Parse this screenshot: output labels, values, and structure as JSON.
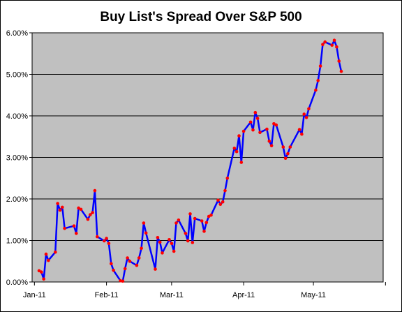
{
  "chart_data": {
    "type": "line",
    "title": "Buy List's Spread Over S&P 500",
    "xlabel": "",
    "ylabel": "",
    "x_tick_labels": [
      "Jan-11",
      "Feb-11",
      "Mar-11",
      "Apr-11",
      "May-11"
    ],
    "y_tick_labels": [
      "0.00%",
      "1.00%",
      "2.00%",
      "3.00%",
      "4.00%",
      "5.00%",
      "6.00%"
    ],
    "xlim": [
      "2010-12-31",
      "2011-05-31"
    ],
    "ylim": [
      0,
      6
    ],
    "grid": "horizontal",
    "legend": "none",
    "series": [
      {
        "x": [
          "2011-01-03",
          "2011-01-04",
          "2011-01-05",
          "2011-01-06",
          "2011-01-07",
          "2011-01-10",
          "2011-01-11",
          "2011-01-12",
          "2011-01-13",
          "2011-01-14",
          "2011-01-18",
          "2011-01-19",
          "2011-01-20",
          "2011-01-21",
          "2011-01-24",
          "2011-01-25",
          "2011-01-26",
          "2011-01-27",
          "2011-01-28",
          "2011-01-31",
          "2011-02-01",
          "2011-02-02",
          "2011-02-03",
          "2011-02-04",
          "2011-02-07",
          "2011-02-08",
          "2011-02-09",
          "2011-02-10",
          "2011-02-11",
          "2011-02-14",
          "2011-02-15",
          "2011-02-16",
          "2011-02-17",
          "2011-02-18",
          "2011-02-22",
          "2011-02-23",
          "2011-02-24",
          "2011-02-25",
          "2011-02-28",
          "2011-03-01",
          "2011-03-02",
          "2011-03-03",
          "2011-03-04",
          "2011-03-07",
          "2011-03-08",
          "2011-03-09",
          "2011-03-10",
          "2011-03-11",
          "2011-03-14",
          "2011-03-15",
          "2011-03-16",
          "2011-03-17",
          "2011-03-18",
          "2011-03-21",
          "2011-03-22",
          "2011-03-23",
          "2011-03-24",
          "2011-03-25",
          "2011-03-28",
          "2011-03-29",
          "2011-03-30",
          "2011-03-31",
          "2011-04-01",
          "2011-04-04",
          "2011-04-05",
          "2011-04-06",
          "2011-04-07",
          "2011-04-08",
          "2011-04-11",
          "2011-04-12",
          "2011-04-13",
          "2011-04-14",
          "2011-04-15",
          "2011-04-18",
          "2011-04-19",
          "2011-04-20",
          "2011-04-21",
          "2011-04-25",
          "2011-04-26",
          "2011-04-27",
          "2011-04-28",
          "2011-04-29",
          "2011-05-02",
          "2011-05-03",
          "2011-05-04",
          "2011-05-05",
          "2011-05-06",
          "2011-05-09",
          "2011-05-10",
          "2011-05-11",
          "2011-05-12",
          "2011-05-13",
          "2011-05-16",
          "2011-05-17",
          "2011-05-18",
          "2011-05-19",
          "2011-05-20"
        ],
        "y": [
          0.27,
          0.24,
          0.07,
          0.67,
          0.52,
          0.72,
          1.89,
          1.73,
          1.8,
          1.29,
          1.35,
          1.17,
          1.78,
          1.75,
          1.51,
          1.62,
          1.67,
          2.2,
          1.09,
          0.99,
          1.05,
          0.93,
          0.44,
          0.28,
          0.03,
          0.02,
          0.32,
          0.58,
          0.5,
          0.4,
          0.58,
          0.81,
          1.42,
          1.18,
          0.31,
          1.07,
          0.96,
          0.7,
          1.02,
          0.93,
          0.74,
          1.42,
          1.49,
          1.17,
          0.99,
          1.64,
          0.95,
          1.53,
          1.47,
          1.22,
          1.43,
          1.58,
          1.61,
          1.97,
          1.87,
          1.93,
          2.2,
          2.5,
          3.22,
          3.14,
          3.52,
          2.88,
          3.63,
          3.85,
          3.66,
          4.08,
          3.94,
          3.6,
          3.68,
          3.39,
          3.28,
          3.81,
          3.78,
          3.25,
          2.98,
          3.09,
          3.25,
          3.67,
          3.56,
          4.04,
          3.96,
          4.17,
          4.62,
          4.85,
          5.2,
          5.72,
          5.78,
          5.7,
          5.82,
          5.66,
          5.32,
          5.07,
          null,
          null,
          null,
          null,
          null
        ]
      }
    ],
    "colors": {
      "plot_background": "#c0c0c0",
      "line": "#0000ff",
      "marker": "#ff0000",
      "gridline": "#000000",
      "axis": "#000000",
      "text": "#000000"
    }
  }
}
